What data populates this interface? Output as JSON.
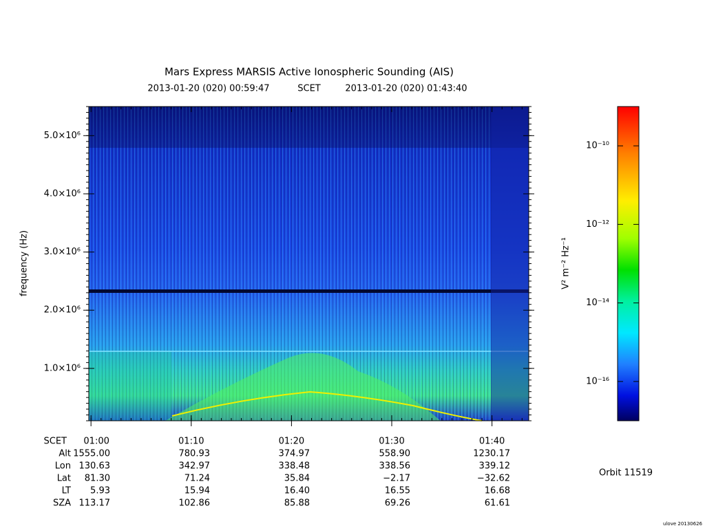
{
  "chart_data": {
    "type": "heatmap",
    "title": "Mars Express MARSIS Active Ionospheric Sounding (AIS)",
    "subtitle": {
      "start": "2013-01-20 (020) 00:59:47",
      "scale": "SCET",
      "end": "2013-01-20 (020) 01:43:40"
    },
    "xlabel": "SCET",
    "xticks": [
      "01:00",
      "01:10",
      "01:20",
      "01:30",
      "01:40"
    ],
    "ylabel": "frequency (Hz)",
    "ylim": [
      100000,
      5500000
    ],
    "yticks": [
      {
        "value": 1000000,
        "label": "1.0×10⁶"
      },
      {
        "value": 2000000,
        "label": "2.0×10⁶"
      },
      {
        "value": 3000000,
        "label": "3.0×10⁶"
      },
      {
        "value": 4000000,
        "label": "4.0×10⁶"
      },
      {
        "value": 5000000,
        "label": "5.0×10⁶"
      }
    ],
    "colorbar": {
      "label": "V² m⁻² Hz⁻¹",
      "scale": "log",
      "zlim": [
        1e-17,
        1e-09
      ],
      "ticks": [
        {
          "value": 1e-10,
          "label": "10⁻¹⁰"
        },
        {
          "value": 1e-12,
          "label": "10⁻¹²"
        },
        {
          "value": 1e-14,
          "label": "10⁻¹⁴"
        },
        {
          "value": 1e-16,
          "label": "10⁻¹⁶"
        }
      ]
    },
    "ephemeris": [
      {
        "label": "Alt",
        "values": [
          "1555.00",
          "780.93",
          "374.97",
          "558.90",
          "1230.17"
        ]
      },
      {
        "label": "Lon",
        "values": [
          "130.63",
          "342.97",
          "338.48",
          "338.56",
          "339.12"
        ]
      },
      {
        "label": "Lat",
        "values": [
          "81.30",
          "71.24",
          "35.84",
          "−2.17",
          "−32.62"
        ]
      },
      {
        "label": "LT",
        "values": [
          "5.93",
          "15.94",
          "16.40",
          "16.55",
          "16.68"
        ]
      },
      {
        "label": "SZA",
        "values": [
          "113.17",
          "102.86",
          "85.88",
          "69.26",
          "61.61"
        ]
      }
    ],
    "orbit": "Orbit 11519",
    "footer": "ulove 20130626"
  }
}
